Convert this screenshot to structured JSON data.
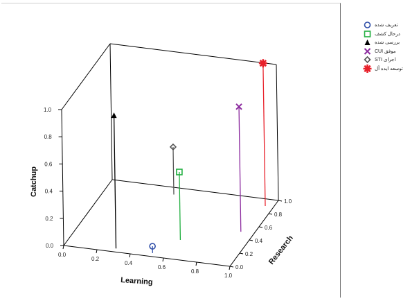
{
  "chart_data": {
    "type": "scatter",
    "subtype": "3d-drop-line",
    "title": "",
    "xlabel": "Learning",
    "ylabel": "Research",
    "zlabel": "Catchup",
    "xlim": [
      0.0,
      1.0
    ],
    "ylim": [
      0.0,
      1.0
    ],
    "zlim": [
      0.0,
      1.0
    ],
    "x_ticks": [
      "0.0",
      "0.2",
      "0.4",
      "0.6",
      "0.8",
      "1.0"
    ],
    "y_ticks": [
      "0.0",
      "0.2",
      "0.4",
      "0.6",
      "0.8",
      "1.0"
    ],
    "z_ticks": [
      "0.0",
      "0.2",
      "0.4",
      "0.6",
      "0.8",
      "1.0"
    ],
    "grid": false,
    "legend_position": "right",
    "series": [
      {
        "name": "تعریف شده",
        "marker": "circle",
        "color": "#2f4ea8",
        "x": 0.52,
        "y": 0.05,
        "z": 0.05
      },
      {
        "name": "درحال کشف",
        "marker": "square",
        "color": "#1fae3e",
        "x": 0.62,
        "y": 0.28,
        "z": 0.5
      },
      {
        "name": "بررسی شده",
        "marker": "triangle",
        "color": "#000000",
        "x": 0.3,
        "y": 0.05,
        "z": 0.98
      },
      {
        "name": "موفق CUI",
        "marker": "x",
        "color": "#8b2a9e",
        "x": 0.92,
        "y": 0.5,
        "z": 0.92
      },
      {
        "name": "اجرای STI",
        "marker": "diamond",
        "color": "#555555",
        "x": 0.4,
        "y": 0.9,
        "z": 0.35
      },
      {
        "name": "توسعه ایده آل",
        "marker": "asterisk",
        "color": "#e8202a",
        "x": 0.95,
        "y": 0.9,
        "z": 1.05
      }
    ]
  }
}
